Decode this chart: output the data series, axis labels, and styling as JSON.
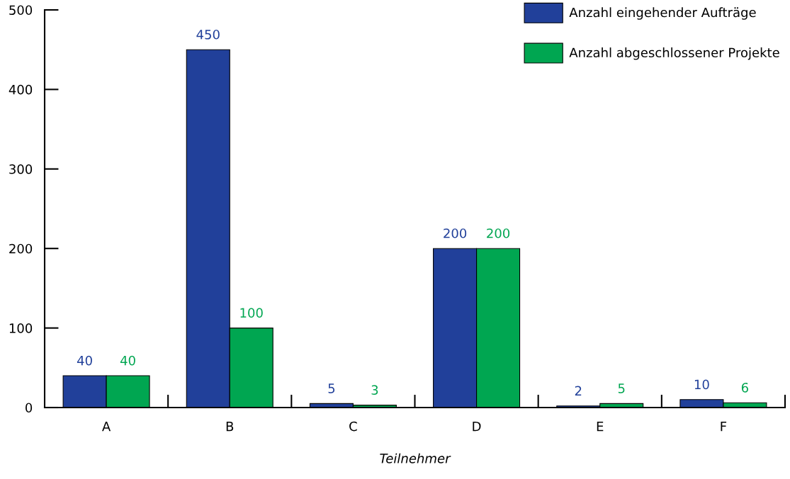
{
  "chart_data": {
    "type": "bar",
    "xlabel": "Teilnehmer",
    "categories": [
      "A",
      "B",
      "C",
      "D",
      "E",
      "F"
    ],
    "series": [
      {
        "name": "Anzahl eingehender Aufträge",
        "color": "#21409a",
        "values": [
          40,
          450,
          5,
          200,
          2,
          10
        ]
      },
      {
        "name": "Anzahl abgeschlossener Projekte",
        "color": "#00a651",
        "values": [
          40,
          100,
          3,
          200,
          5,
          6
        ]
      }
    ],
    "ylim": [
      0,
      500
    ],
    "yticks": [
      0,
      100,
      200,
      300,
      400,
      500
    ],
    "data_labels": true,
    "legend": "top right",
    "grid": false
  }
}
